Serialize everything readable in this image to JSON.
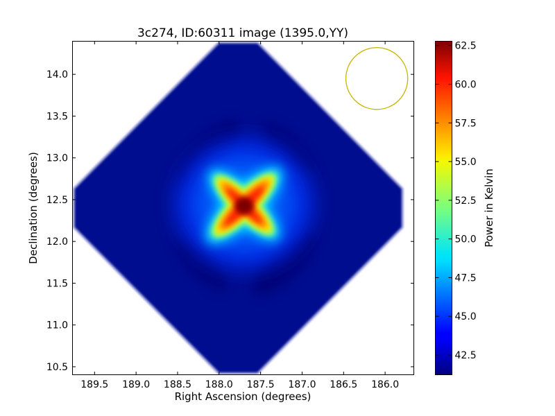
{
  "chart_data": {
    "type": "heatmap",
    "title": "3c274, ID:60311 image (1395.0,YY)",
    "xlabel": "Right Ascension (degrees)",
    "ylabel": "Declination (degrees)",
    "xlim": [
      189.77,
      185.65
    ],
    "ylim": [
      10.4,
      14.4
    ],
    "x_inverted": true,
    "x_ticks": [
      189.5,
      189.0,
      188.5,
      188.0,
      187.5,
      187.0,
      186.5,
      186.0
    ],
    "x_tick_labels": [
      "189.5",
      "189.0",
      "188.5",
      "188.0",
      "187.5",
      "187.0",
      "186.5",
      "186.0"
    ],
    "y_ticks": [
      10.5,
      11.0,
      11.5,
      12.0,
      12.5,
      13.0,
      13.5,
      14.0
    ],
    "y_tick_labels": [
      "10.5",
      "11.0",
      "11.5",
      "12.0",
      "12.5",
      "13.0",
      "13.5",
      "14.0"
    ],
    "colormap": "jet",
    "colorbar": {
      "label": "Power in Kelvin",
      "vmin": 41.2,
      "vmax": 62.8,
      "ticks": [
        42.5,
        45.0,
        47.5,
        50.0,
        52.5,
        55.0,
        57.5,
        60.0,
        62.5
      ],
      "tick_labels": [
        "42.5",
        "45.0",
        "47.5",
        "50.0",
        "52.5",
        "55.0",
        "57.5",
        "60.0",
        "62.5"
      ]
    },
    "image_footprint": {
      "shape": "diamond",
      "center_ra": 187.77,
      "center_dec": 12.4,
      "half_width_ra": 1.98,
      "half_height_dec": 1.98
    },
    "source": {
      "ra": 187.7,
      "dec": 12.39,
      "peak_kelvin": 62.5,
      "background_kelvin": 42.0,
      "morphology": "X-shaped four-armed pattern"
    },
    "beam_circle": {
      "ra": 186.1,
      "dec": 13.95,
      "radius_deg": 0.37,
      "color": "#c8b400"
    }
  }
}
